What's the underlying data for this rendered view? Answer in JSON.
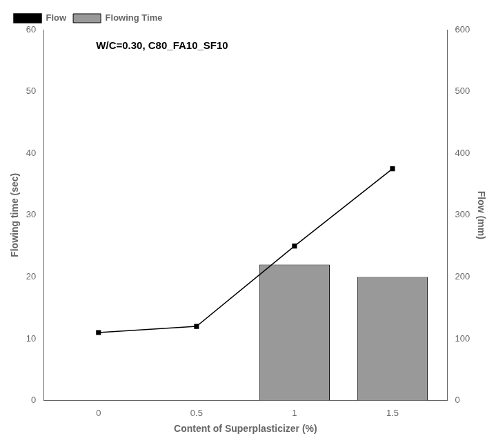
{
  "chart_data": {
    "type": "bar",
    "x": [
      0,
      0.5,
      1,
      1.5
    ],
    "xlabel": "Content of Superplasticizer (%)",
    "ylabel": "Flowing time (sec)",
    "y2label": "Flow (mm)",
    "xlim": [
      -0.28,
      1.78
    ],
    "xticks": [
      0,
      0.5,
      1,
      1.5
    ],
    "ylim": [
      0,
      60
    ],
    "yticks": [
      0,
      10,
      20,
      30,
      40,
      50,
      60
    ],
    "y2lim": [
      0,
      600
    ],
    "y2ticks": [
      0,
      100,
      200,
      300,
      400,
      500,
      600
    ],
    "annotation": "W/C=0.30, C80_FA10_SF10",
    "legend": "upper left",
    "grid": false,
    "series": [
      {
        "name": "Flowing Time",
        "type": "bar",
        "color": "#999999",
        "values": [
          null,
          null,
          22,
          20
        ]
      },
      {
        "name": "Flow",
        "type": "line",
        "axis": "y2",
        "color": "#000000",
        "marker": "square",
        "values": [
          110,
          120,
          250,
          375
        ]
      }
    ]
  }
}
